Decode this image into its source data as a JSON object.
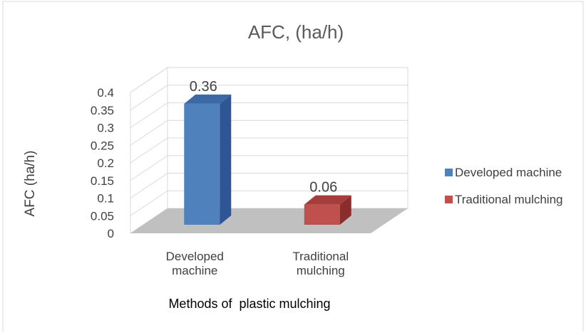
{
  "chart_data": {
    "type": "bar",
    "title": "AFC, (ha/h)",
    "xlabel": "Methods of  plastic mulching",
    "ylabel": "AFC (ha/h)",
    "ylim": [
      0,
      0.4
    ],
    "yticks": [
      "0",
      "0.05",
      "0.1",
      "0.15",
      "0.2",
      "0.25",
      "0.3",
      "0.35",
      "0.4"
    ],
    "grid": true,
    "legend_position": "right",
    "categories": [
      [
        "Developed",
        "machine"
      ],
      [
        "Traditional",
        "mulching"
      ]
    ],
    "series": [
      {
        "name": "Developed machine",
        "value": 0.36,
        "label": "0.36",
        "color": "#4f81bd",
        "side_color": "#2f5597",
        "top_color": "#3c6aa4"
      },
      {
        "name": "Traditional mulching",
        "value": 0.06,
        "label": "0.06",
        "color": "#c0504d",
        "side_color": "#8b2d2b",
        "top_color": "#a53e3b"
      }
    ],
    "colors": {
      "floor": "#c0c0c0",
      "grid": "#d9d9d9",
      "text": "#404040"
    }
  }
}
